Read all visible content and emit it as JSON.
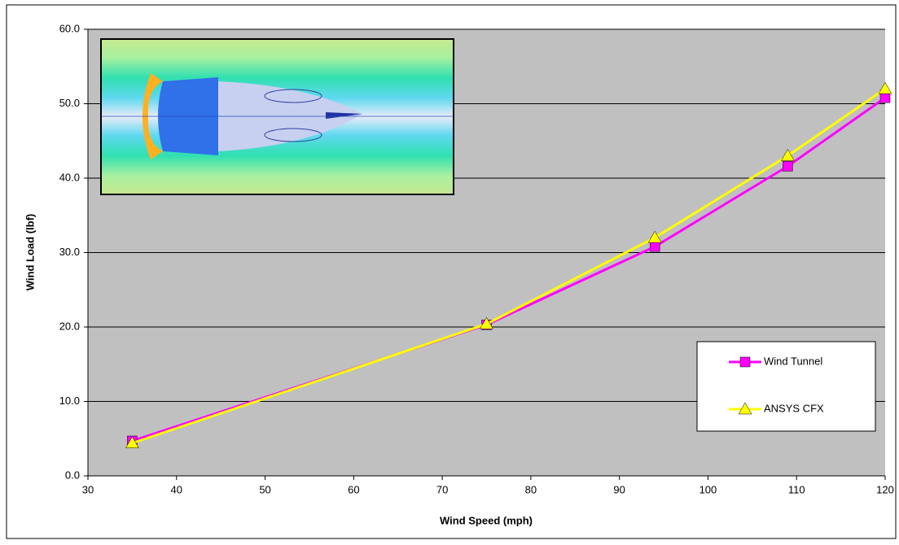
{
  "chart_data": {
    "type": "line",
    "x_label": "Wind Speed (mph)",
    "y_label": "Wind Load (lbf)",
    "x": [
      35,
      75,
      94,
      109,
      120
    ],
    "series": [
      {
        "name": "Wind Tunnel",
        "color": "#ff00ff",
        "marker": "square",
        "values": [
          4.7,
          20.3,
          30.8,
          41.6,
          50.8
        ]
      },
      {
        "name": "ANSYS CFX",
        "color": "#ffff00",
        "marker": "triangle",
        "values": [
          4.4,
          20.4,
          32.0,
          43.0,
          52.0
        ]
      }
    ],
    "xlim": [
      30,
      120
    ],
    "xticks": [
      30,
      40,
      50,
      60,
      70,
      80,
      90,
      100,
      110,
      120
    ],
    "ylim": [
      0,
      60
    ],
    "yticks": [
      {
        "value": 0,
        "label": "0.0"
      },
      {
        "value": 10,
        "label": "10.0"
      },
      {
        "value": 20,
        "label": "20.0"
      },
      {
        "value": 30,
        "label": "30.0"
      },
      {
        "value": 40,
        "label": "40.0"
      },
      {
        "value": 50,
        "label": "50.0"
      },
      {
        "value": 60,
        "label": "60.0"
      }
    ],
    "grid": true,
    "legend": "right"
  }
}
